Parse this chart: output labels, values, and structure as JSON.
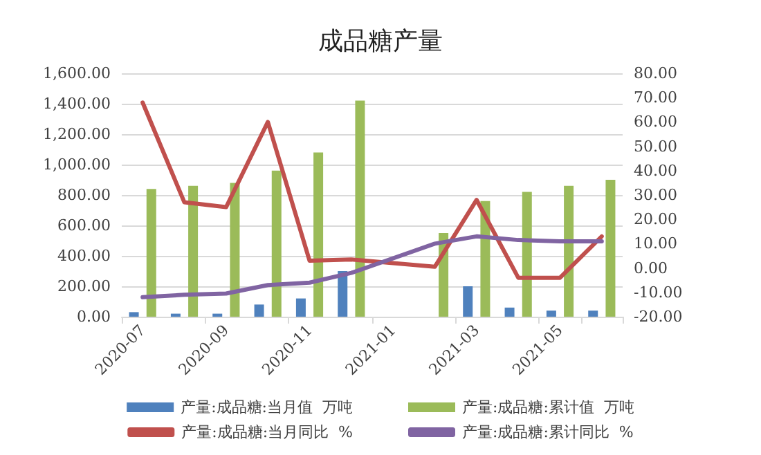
{
  "chart_data": {
    "type": "bar",
    "title": "成品糖产量",
    "categories": [
      "2020-07",
      null,
      "2020-09",
      null,
      "2020-11",
      null,
      "2021-01",
      null,
      "2021-03",
      null,
      "2021-05",
      null
    ],
    "series": [
      {
        "name": "产量:成品糖:当月值  万吨",
        "color": "#4f81bd",
        "values": [
          30,
          20,
          20,
          80,
          120,
          300,
          null,
          null,
          200,
          60,
          40,
          40
        ]
      },
      {
        "name": "产量:成品糖:累计值  万吨",
        "color": "#9bbb59",
        "values": [
          840,
          860,
          880,
          960,
          1080,
          1420,
          null,
          550,
          760,
          820,
          860,
          900
        ]
      },
      {
        "name": "产量:成品糖:当月同比  %",
        "type": "line",
        "axis": "y2",
        "color": "#c0504d",
        "values": [
          68,
          27,
          25,
          60,
          3,
          3.5,
          null,
          0.5,
          28,
          -4,
          -4,
          13
        ]
      },
      {
        "name": "产量:成品糖:累计同比  %",
        "type": "line",
        "axis": "y2",
        "color": "#8064a2",
        "values": [
          -12,
          -11,
          -10.5,
          -7,
          -6,
          -2,
          null,
          10,
          13,
          11.5,
          11,
          11
        ]
      }
    ],
    "ylim": [
      0,
      1600
    ],
    "yticks": [
      {
        "value": 0,
        "label": "0.00"
      },
      {
        "value": 200,
        "label": "200.00"
      },
      {
        "value": 400,
        "label": "400.00"
      },
      {
        "value": 600,
        "label": "600.00"
      },
      {
        "value": 800,
        "label": "800.00"
      },
      {
        "value": 1000,
        "label": "1,000.00"
      },
      {
        "value": 1200,
        "label": "1,200.00"
      },
      {
        "value": 1400,
        "label": "1,400.00"
      },
      {
        "value": 1600,
        "label": "1,600.00"
      }
    ],
    "y2lim": [
      -20,
      80
    ],
    "y2ticks": [
      {
        "value": -20,
        "label": "-20.00"
      },
      {
        "value": -10,
        "label": "-10.00"
      },
      {
        "value": 0,
        "label": "0.00"
      },
      {
        "value": 10,
        "label": "10.00"
      },
      {
        "value": 20,
        "label": "20.00"
      },
      {
        "value": 30,
        "label": "30.00"
      },
      {
        "value": 40,
        "label": "40.00"
      },
      {
        "value": 50,
        "label": "50.00"
      },
      {
        "value": 60,
        "label": "60.00"
      },
      {
        "value": 70,
        "label": "70.00"
      },
      {
        "value": 80,
        "label": "80.00"
      }
    ],
    "grid": "y",
    "legend": "bottom",
    "marker": "none",
    "line_style": "solid"
  }
}
